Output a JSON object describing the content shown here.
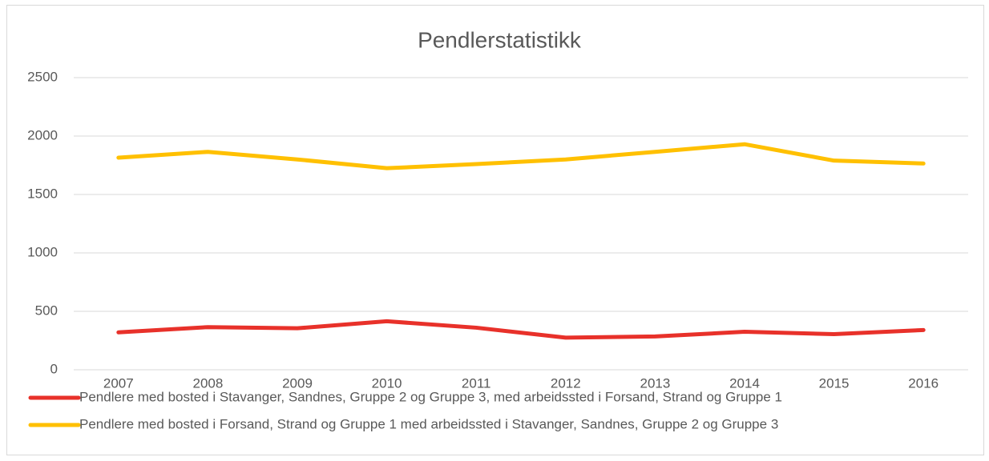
{
  "chart_data": {
    "type": "line",
    "title": "Pendlerstatistikk",
    "categories": [
      "2007",
      "2008",
      "2009",
      "2010",
      "2011",
      "2012",
      "2013",
      "2014",
      "2015",
      "2016"
    ],
    "series": [
      {
        "name": "Pendlere med bosted i Stavanger, Sandnes, Gruppe 2 og Gruppe 3, med arbeidssted i Forsand, Strand og Gruppe 1",
        "color": "#e8312a",
        "values": [
          320,
          365,
          355,
          415,
          360,
          275,
          285,
          325,
          305,
          340
        ]
      },
      {
        "name": "Pendlere med bosted i Forsand, Strand og Gruppe 1 med arbeidssted i Stavanger, Sandnes, Gruppe 2 og Gruppe 3",
        "color": "#ffc000",
        "values": [
          1815,
          1865,
          1800,
          1725,
          1760,
          1800,
          1865,
          1930,
          1790,
          1765
        ]
      }
    ],
    "ylim": [
      0,
      2500
    ],
    "yticks": [
      0,
      500,
      1000,
      1500,
      2000,
      2500
    ],
    "grid": true,
    "legend": "bottom"
  }
}
